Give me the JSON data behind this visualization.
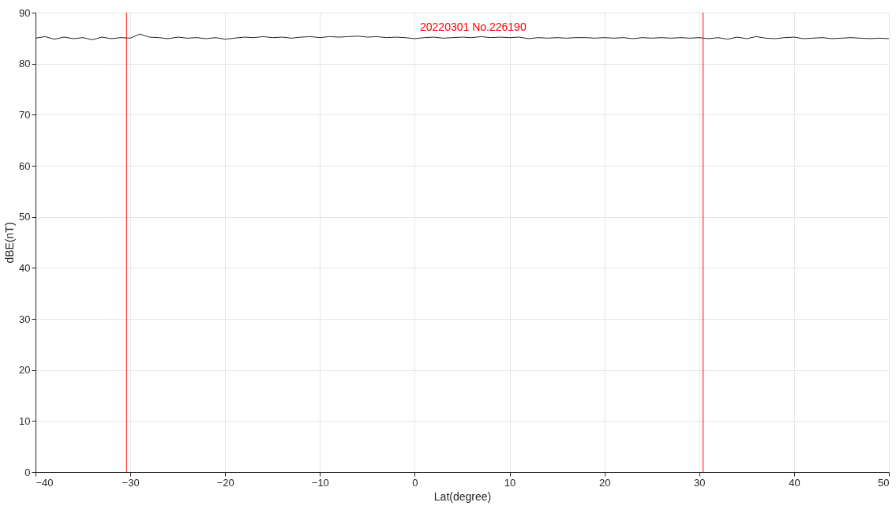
{
  "chart_data": {
    "type": "line",
    "xlabel": "Lat(degree)",
    "ylabel": "dBE(nT)",
    "xlim": [
      -40,
      50
    ],
    "ylim": [
      0,
      90
    ],
    "xticks": [
      -40,
      -30,
      -20,
      -10,
      0,
      10,
      20,
      30,
      40,
      50
    ],
    "yticks": [
      0,
      10,
      20,
      30,
      40,
      50,
      60,
      70,
      80,
      90
    ],
    "grid": true,
    "marker": "none",
    "line_style": "solid",
    "x": [
      -40,
      -39,
      -38,
      -37,
      -36,
      -35,
      -34,
      -33,
      -32,
      -31,
      -30,
      -29,
      -28,
      -27,
      -26,
      -25,
      -24,
      -23,
      -22,
      -21,
      -20,
      -19,
      -18,
      -17,
      -16,
      -15,
      -14,
      -13,
      -12,
      -11,
      -10,
      -9,
      -8,
      -7,
      -6,
      -5,
      -4,
      -3,
      -2,
      -1,
      0,
      1,
      2,
      3,
      4,
      5,
      6,
      7,
      8,
      9,
      10,
      11,
      12,
      13,
      14,
      15,
      16,
      17,
      18,
      19,
      20,
      21,
      22,
      23,
      24,
      25,
      26,
      27,
      28,
      29,
      30,
      31,
      32,
      33,
      34,
      35,
      36,
      37,
      38,
      39,
      40,
      41,
      42,
      43,
      44,
      45,
      46,
      47,
      48,
      49,
      50
    ],
    "series": [
      {
        "color": "#262626",
        "values": [
          85.0,
          85.3,
          84.8,
          85.2,
          84.9,
          85.1,
          84.7,
          85.2,
          84.9,
          85.1,
          85.0,
          85.8,
          85.2,
          85.1,
          84.9,
          85.2,
          85.0,
          85.1,
          84.9,
          85.1,
          84.8,
          85.0,
          85.2,
          85.1,
          85.3,
          85.1,
          85.2,
          85.0,
          85.2,
          85.3,
          85.1,
          85.3,
          85.2,
          85.3,
          85.4,
          85.2,
          85.3,
          85.1,
          85.2,
          85.1,
          84.9,
          85.1,
          85.2,
          85.0,
          85.1,
          85.2,
          85.1,
          85.3,
          85.1,
          85.2,
          85.1,
          85.2,
          84.9,
          85.1,
          85.0,
          85.1,
          85.0,
          85.1,
          85.1,
          85.0,
          85.1,
          85.0,
          85.1,
          84.9,
          85.1,
          85.0,
          85.1,
          85.0,
          85.1,
          85.0,
          85.1,
          84.9,
          85.1,
          84.8,
          85.2,
          84.9,
          85.3,
          85.0,
          84.9,
          85.1,
          85.2,
          84.9,
          85.0,
          85.1,
          84.9,
          85.0,
          85.1,
          85.0,
          84.9,
          85.0,
          84.9
        ]
      }
    ],
    "ref_lines": [
      {
        "axis": "x",
        "value": -30.4,
        "color": "#ff0000"
      },
      {
        "axis": "x",
        "value": 30.4,
        "color": "#ff0000"
      }
    ],
    "annotations": [
      "20220301 No.226190"
    ]
  }
}
